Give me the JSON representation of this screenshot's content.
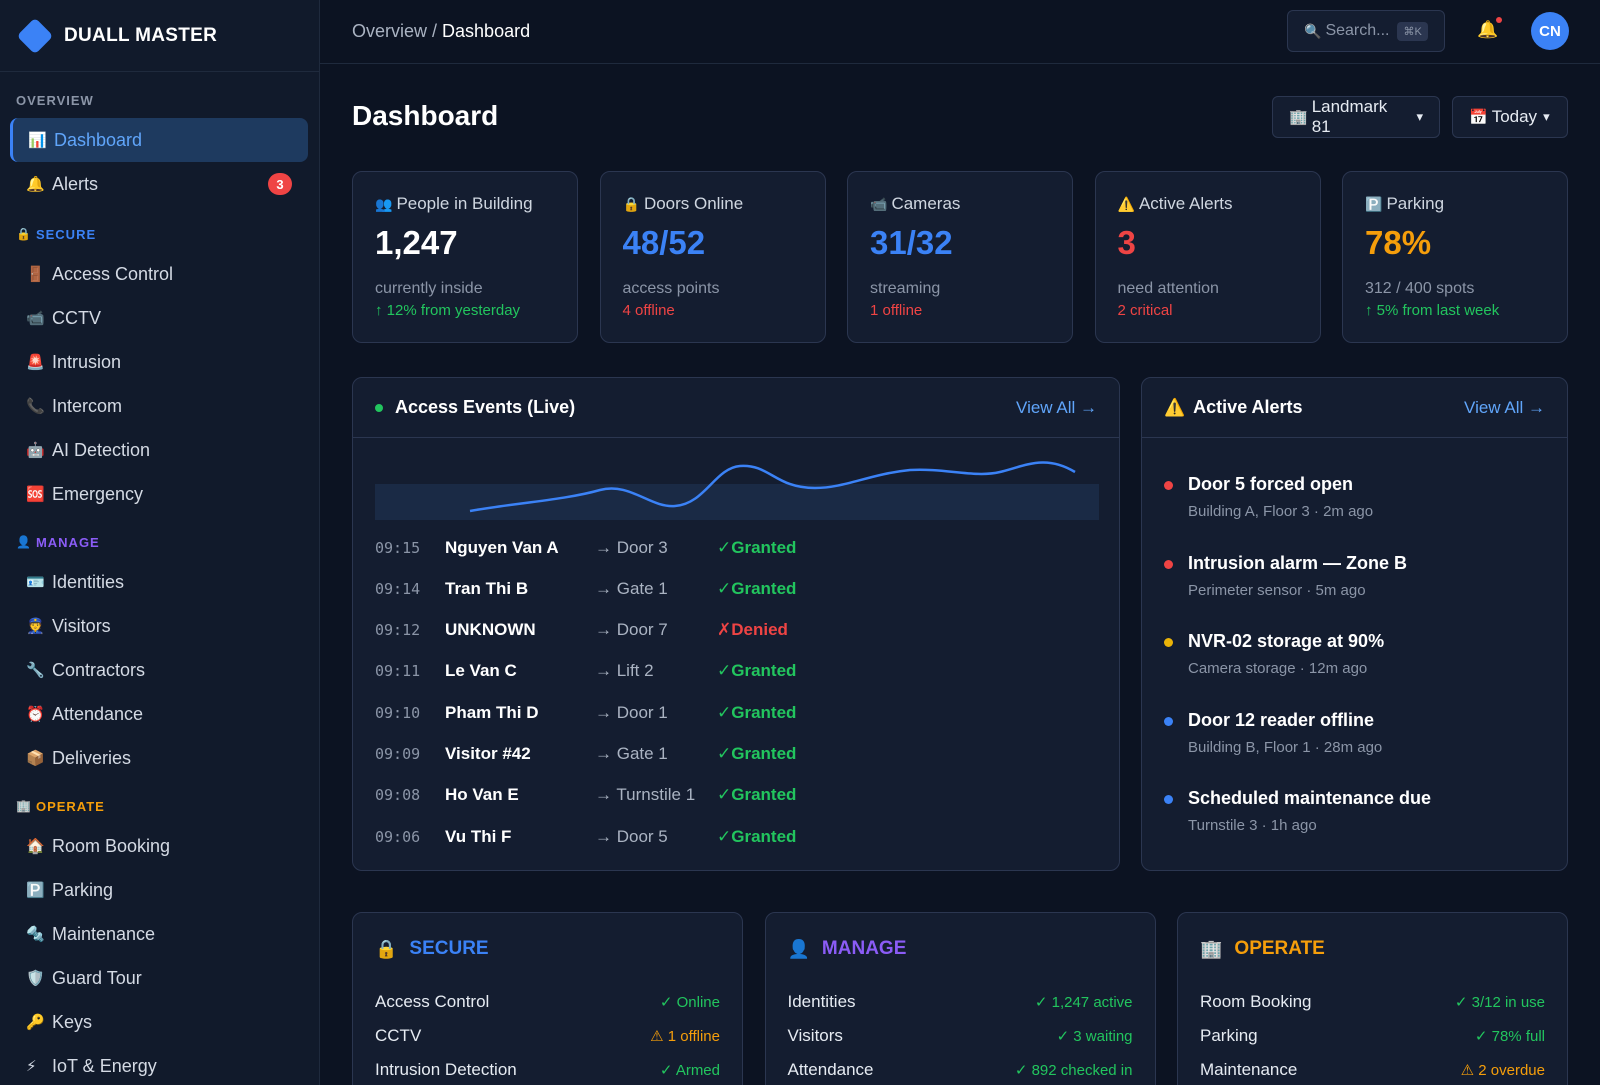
{
  "brand": {
    "name": "DUALL MASTER"
  },
  "breadcrumb": {
    "parent": "Overview",
    "separator": " / ",
    "current": "Dashboard"
  },
  "search": {
    "placeholder": "Search...",
    "shortcut": "⌘K",
    "icon": "🔍"
  },
  "user": {
    "initials": "CN"
  },
  "sidebar": {
    "sections": [
      {
        "label": "OVERVIEW",
        "icon": "",
        "color": "#8b95a7",
        "items": [
          {
            "icon": "📊",
            "label": "Dashboard",
            "active": true
          },
          {
            "icon": "🔔",
            "label": "Alerts",
            "badge": "3"
          }
        ]
      },
      {
        "label": "SECURE",
        "icon": "🔒",
        "color": "#3b82f6",
        "items": [
          {
            "icon": "🚪",
            "label": "Access Control"
          },
          {
            "icon": "📹",
            "label": "CCTV"
          },
          {
            "icon": "🚨",
            "label": "Intrusion"
          },
          {
            "icon": "📞",
            "label": "Intercom"
          },
          {
            "icon": "🤖",
            "label": "AI Detection"
          },
          {
            "icon": "🆘",
            "label": "Emergency"
          }
        ]
      },
      {
        "label": "MANAGE",
        "icon": "👤",
        "color": "#8b5cf6",
        "items": [
          {
            "icon": "🪪",
            "label": "Identities"
          },
          {
            "icon": "👮",
            "label": "Visitors"
          },
          {
            "icon": "🔧",
            "label": "Contractors"
          },
          {
            "icon": "⏰",
            "label": "Attendance"
          },
          {
            "icon": "📦",
            "label": "Deliveries"
          }
        ]
      },
      {
        "label": "OPERATE",
        "icon": "🏢",
        "color": "#f59e0b",
        "items": [
          {
            "icon": "🏠",
            "label": "Room Booking"
          },
          {
            "icon": "🅿️",
            "label": "Parking"
          },
          {
            "icon": "🔩",
            "label": "Maintenance"
          },
          {
            "icon": "🛡️",
            "label": "Guard Tour"
          },
          {
            "icon": "🔑",
            "label": "Keys"
          },
          {
            "icon": "⚡",
            "label": "IoT & Energy"
          }
        ]
      }
    ]
  },
  "page": {
    "title": "Dashboard"
  },
  "filters": {
    "site": {
      "icon": "🏢",
      "label": "Landmark 81",
      "caret": "▾"
    },
    "range": {
      "icon": "📅",
      "label": "Today",
      "caret": "▾"
    }
  },
  "stats": [
    {
      "icon": "👥",
      "label": "People in Building",
      "value": "1,247",
      "value_color": "#ffffff",
      "sub": "currently inside",
      "trend": "↑ 12% from yesterday",
      "trend_color": "#22c55e"
    },
    {
      "icon": "🔒",
      "label": "Doors Online",
      "value": "48/52",
      "value_color": "#3b82f6",
      "sub": "access points",
      "trend": "4 offline",
      "trend_color": "#ef4444"
    },
    {
      "icon": "📹",
      "label": "Cameras",
      "value": "31/32",
      "value_color": "#3b82f6",
      "sub": "streaming",
      "trend": "1 offline",
      "trend_color": "#ef4444"
    },
    {
      "icon": "⚠️",
      "label": "Active Alerts",
      "value": "3",
      "value_color": "#ef4444",
      "sub": "need attention",
      "trend": "2 critical",
      "trend_color": "#ef4444"
    },
    {
      "icon": "🅿️",
      "label": "Parking",
      "value": "78%",
      "value_color": "#f59e0b",
      "sub": "312 / 400 spots",
      "trend": "↑ 5% from last week",
      "trend_color": "#22c55e"
    }
  ],
  "access_events": {
    "title": "Access Events (Live)",
    "view_all": "View All →",
    "rows": [
      {
        "time": "09:15",
        "name": "Nguyen Van A",
        "dest": "→ Door 3",
        "status": "✓Granted",
        "status_color": "#22c55e"
      },
      {
        "time": "09:14",
        "name": "Tran Thi B",
        "dest": "→ Gate 1",
        "status": "✓Granted",
        "status_color": "#22c55e"
      },
      {
        "time": "09:12",
        "name": "UNKNOWN",
        "dest": "→ Door 7",
        "status": "✗Denied",
        "status_color": "#ef4444"
      },
      {
        "time": "09:11",
        "name": "Le Van C",
        "dest": "→ Lift 2",
        "status": "✓Granted",
        "status_color": "#22c55e"
      },
      {
        "time": "09:10",
        "name": "Pham Thi D",
        "dest": "→ Door 1",
        "status": "✓Granted",
        "status_color": "#22c55e"
      },
      {
        "time": "09:09",
        "name": "Visitor #42",
        "dest": "→ Gate 1",
        "status": "✓Granted",
        "status_color": "#22c55e"
      },
      {
        "time": "09:08",
        "name": "Ho Van E",
        "dest": "→ Turnstile 1",
        "status": "✓Granted",
        "status_color": "#22c55e"
      },
      {
        "time": "09:06",
        "name": "Vu Thi F",
        "dest": "→ Door 5",
        "status": "✓Granted",
        "status_color": "#22c55e"
      }
    ]
  },
  "active_alerts": {
    "icon": "⚠️",
    "title": "Active Alerts",
    "view_all": "View All →",
    "items": [
      {
        "title": "Door 5 forced open",
        "meta": "Building A, Floor 3 · 2m ago",
        "color": "#ef4444"
      },
      {
        "title": "Intrusion alarm — Zone B",
        "meta": "Perimeter sensor · 5m ago",
        "color": "#ef4444"
      },
      {
        "title": "NVR-02 storage at 90%",
        "meta": "Camera storage · 12m ago",
        "color": "#eab308"
      },
      {
        "title": "Door 12 reader offline",
        "meta": "Building B, Floor 1 · 28m ago",
        "color": "#3b82f6"
      },
      {
        "title": "Scheduled maintenance due",
        "meta": "Turnstile 3 · 1h ago",
        "color": "#3b82f6"
      }
    ]
  },
  "modules": [
    {
      "icon": "🔒",
      "title": "SECURE",
      "color": "#3b82f6",
      "rows": [
        {
          "label": "Access Control",
          "status": "✓ Online",
          "color": "#22c55e"
        },
        {
          "label": "CCTV",
          "status": "⚠ 1 offline",
          "color": "#f59e0b"
        },
        {
          "label": "Intrusion Detection",
          "status": "✓ Armed",
          "color": "#22c55e"
        }
      ]
    },
    {
      "icon": "👤",
      "title": "MANAGE",
      "color": "#8b5cf6",
      "rows": [
        {
          "label": "Identities",
          "status": "✓ 1,247 active",
          "color": "#22c55e"
        },
        {
          "label": "Visitors",
          "status": "✓ 3 waiting",
          "color": "#22c55e"
        },
        {
          "label": "Attendance",
          "status": "✓ 892 checked in",
          "color": "#22c55e"
        }
      ]
    },
    {
      "icon": "🏢",
      "title": "OPERATE",
      "color": "#f59e0b",
      "rows": [
        {
          "label": "Room Booking",
          "status": "✓ 3/12 in use",
          "color": "#22c55e"
        },
        {
          "label": "Parking",
          "status": "✓ 78% full",
          "color": "#22c55e"
        },
        {
          "label": "Maintenance",
          "status": "⚠ 2 overdue",
          "color": "#f59e0b"
        }
      ]
    }
  ],
  "colors": {
    "accent": "#3b82f6",
    "success": "#22c55e",
    "danger": "#ef4444",
    "warning": "#f59e0b",
    "bg": "#0c1322",
    "panel": "#141d30"
  }
}
